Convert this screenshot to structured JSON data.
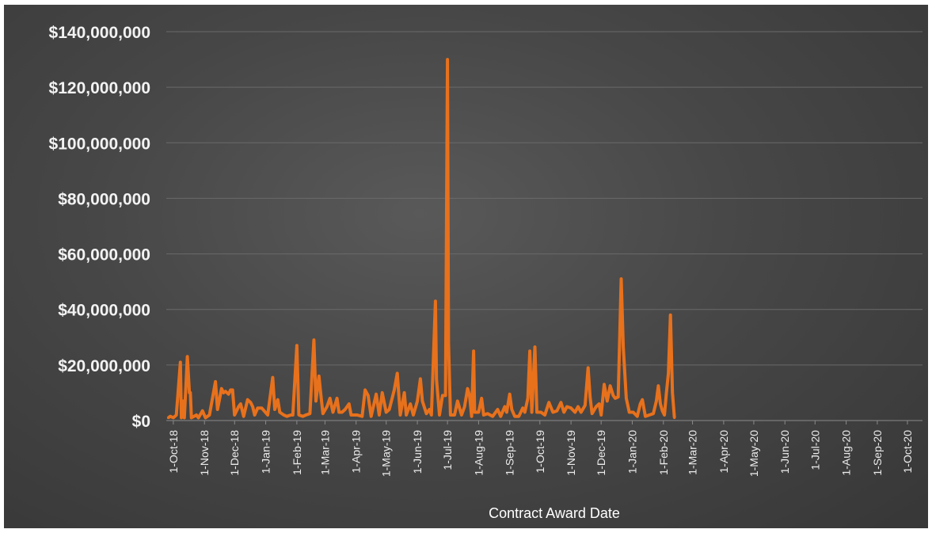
{
  "chart_data": {
    "type": "line",
    "title": "",
    "xlabel": "Contract Award Date",
    "ylabel": "",
    "ylim": [
      0,
      140000000
    ],
    "y_ticks": [
      0,
      20000000,
      40000000,
      60000000,
      80000000,
      100000000,
      120000000,
      140000000
    ],
    "y_tick_labels": [
      "$0",
      "$20,000,000",
      "$40,000,000",
      "$60,000,000",
      "$80,000,000",
      "$100,000,000",
      "$120,000,000",
      "$140,000,000"
    ],
    "xlim": [
      "2018-09-24",
      "2020-10-16"
    ],
    "x_ticks": [
      "2018-10-01",
      "2018-11-01",
      "2018-12-01",
      "2019-01-01",
      "2019-02-01",
      "2019-03-01",
      "2019-04-01",
      "2019-05-01",
      "2019-06-01",
      "2019-07-01",
      "2019-08-01",
      "2019-09-01",
      "2019-10-01",
      "2019-11-01",
      "2019-12-01",
      "2020-01-01",
      "2020-02-01",
      "2020-03-01",
      "2020-04-01",
      "2020-05-01",
      "2020-06-01",
      "2020-07-01",
      "2020-08-01",
      "2020-09-01",
      "2020-10-01"
    ],
    "x_tick_labels": [
      "1-Oct-18",
      "1-Nov-18",
      "1-Dec-18",
      "1-Jan-19",
      "1-Feb-19",
      "1-Mar-19",
      "1-Apr-19",
      "1-May-19",
      "1-Jun-19",
      "1-Jul-19",
      "1-Aug-19",
      "1-Sep-19",
      "1-Oct-19",
      "1-Nov-19",
      "1-Dec-19",
      "1-Jan-20",
      "1-Feb-20",
      "1-Mar-20",
      "1-Apr-20",
      "1-May-20",
      "1-Jun-20",
      "1-Jul-20",
      "1-Aug-20",
      "1-Sep-20",
      "1-Oct-20"
    ],
    "grid": true,
    "legend": "none",
    "series": [
      {
        "color": "#e8711c",
        "points": [
          [
            "2018-09-26",
            1000000
          ],
          [
            "2018-09-28",
            1500000
          ],
          [
            "2018-10-01",
            1000000
          ],
          [
            "2018-10-04",
            2000000
          ],
          [
            "2018-10-08",
            21000000
          ],
          [
            "2018-10-09",
            1000000
          ],
          [
            "2018-10-11",
            7000000
          ],
          [
            "2018-10-12",
            1000000
          ],
          [
            "2018-10-15",
            23000000
          ],
          [
            "2018-10-17",
            10000000
          ],
          [
            "2018-10-18",
            10000000
          ],
          [
            "2018-10-19",
            1000000
          ],
          [
            "2018-10-24",
            2000000
          ],
          [
            "2018-10-26",
            1000000
          ],
          [
            "2018-10-30",
            3500000
          ],
          [
            "2018-11-02",
            1000000
          ],
          [
            "2018-11-06",
            2000000
          ],
          [
            "2018-11-12",
            14000000
          ],
          [
            "2018-11-14",
            4000000
          ],
          [
            "2018-11-18",
            11500000
          ],
          [
            "2018-11-20",
            10000000
          ],
          [
            "2018-11-22",
            10500000
          ],
          [
            "2018-11-25",
            9500000
          ],
          [
            "2018-11-27",
            11000000
          ],
          [
            "2018-11-29",
            11000000
          ],
          [
            "2018-12-01",
            2000000
          ],
          [
            "2018-12-05",
            5000000
          ],
          [
            "2018-12-07",
            6000000
          ],
          [
            "2018-12-10",
            1500000
          ],
          [
            "2018-12-14",
            7500000
          ],
          [
            "2018-12-17",
            6500000
          ],
          [
            "2018-12-19",
            5000000
          ],
          [
            "2018-12-21",
            2000000
          ],
          [
            "2018-12-24",
            4500000
          ],
          [
            "2018-12-28",
            4500000
          ],
          [
            "2019-01-03",
            2000000
          ],
          [
            "2019-01-08",
            15500000
          ],
          [
            "2019-01-10",
            4000000
          ],
          [
            "2019-01-13",
            7500000
          ],
          [
            "2019-01-15",
            3000000
          ],
          [
            "2019-01-19",
            2000000
          ],
          [
            "2019-01-22",
            1500000
          ],
          [
            "2019-01-26",
            2000000
          ],
          [
            "2019-01-28",
            2000000
          ],
          [
            "2019-02-01",
            27000000
          ],
          [
            "2019-02-03",
            2000000
          ],
          [
            "2019-02-07",
            1500000
          ],
          [
            "2019-02-10",
            2000000
          ],
          [
            "2019-02-14",
            2500000
          ],
          [
            "2019-02-18",
            29000000
          ],
          [
            "2019-02-20",
            7000000
          ],
          [
            "2019-02-23",
            16000000
          ],
          [
            "2019-02-25",
            9000000
          ],
          [
            "2019-02-27",
            2500000
          ],
          [
            "2019-03-03",
            5000000
          ],
          [
            "2019-03-06",
            8000000
          ],
          [
            "2019-03-09",
            3000000
          ],
          [
            "2019-03-13",
            8000000
          ],
          [
            "2019-03-15",
            3000000
          ],
          [
            "2019-03-18",
            3000000
          ],
          [
            "2019-03-21",
            4000000
          ],
          [
            "2019-03-25",
            6000000
          ],
          [
            "2019-03-27",
            2000000
          ],
          [
            "2019-04-02",
            2000000
          ],
          [
            "2019-04-07",
            1500000
          ],
          [
            "2019-04-10",
            11000000
          ],
          [
            "2019-04-13",
            9000000
          ],
          [
            "2019-04-16",
            1500000
          ],
          [
            "2019-04-21",
            9500000
          ],
          [
            "2019-04-24",
            2000000
          ],
          [
            "2019-04-27",
            10000000
          ],
          [
            "2019-05-01",
            3000000
          ],
          [
            "2019-05-04",
            4000000
          ],
          [
            "2019-05-09",
            11000000
          ],
          [
            "2019-05-12",
            17000000
          ],
          [
            "2019-05-15",
            2000000
          ],
          [
            "2019-05-19",
            10000000
          ],
          [
            "2019-05-21",
            2000000
          ],
          [
            "2019-05-25",
            6000000
          ],
          [
            "2019-05-28",
            2000000
          ],
          [
            "2019-06-01",
            7000000
          ],
          [
            "2019-06-04",
            15000000
          ],
          [
            "2019-06-06",
            7000000
          ],
          [
            "2019-06-10",
            2500000
          ],
          [
            "2019-06-13",
            4000000
          ],
          [
            "2019-06-15",
            2000000
          ],
          [
            "2019-06-19",
            43000000
          ],
          [
            "2019-06-20",
            15000000
          ],
          [
            "2019-06-23",
            2000000
          ],
          [
            "2019-06-26",
            9000000
          ],
          [
            "2019-06-29",
            9000000
          ],
          [
            "2019-07-01",
            130000000
          ],
          [
            "2019-07-02",
            28000000
          ],
          [
            "2019-07-04",
            2000000
          ],
          [
            "2019-07-08",
            2000000
          ],
          [
            "2019-07-11",
            7000000
          ],
          [
            "2019-07-15",
            2000000
          ],
          [
            "2019-07-18",
            5000000
          ],
          [
            "2019-07-21",
            11500000
          ],
          [
            "2019-07-23",
            9000000
          ],
          [
            "2019-07-25",
            1500000
          ],
          [
            "2019-07-27",
            25000000
          ],
          [
            "2019-07-28",
            3000000
          ],
          [
            "2019-08-01",
            3000000
          ],
          [
            "2019-08-04",
            8000000
          ],
          [
            "2019-08-06",
            2000000
          ],
          [
            "2019-08-10",
            2500000
          ],
          [
            "2019-08-15",
            1500000
          ],
          [
            "2019-08-20",
            4000000
          ],
          [
            "2019-08-23",
            1500000
          ],
          [
            "2019-08-27",
            5000000
          ],
          [
            "2019-08-29",
            3000000
          ],
          [
            "2019-09-01",
            9500000
          ],
          [
            "2019-09-03",
            4000000
          ],
          [
            "2019-09-06",
            1500000
          ],
          [
            "2019-09-10",
            1500000
          ],
          [
            "2019-09-14",
            4500000
          ],
          [
            "2019-09-16",
            3000000
          ],
          [
            "2019-09-19",
            8000000
          ],
          [
            "2019-09-21",
            25000000
          ],
          [
            "2019-09-23",
            3000000
          ],
          [
            "2019-09-26",
            26500000
          ],
          [
            "2019-09-28",
            3000000
          ],
          [
            "2019-10-02",
            3000000
          ],
          [
            "2019-10-06",
            2000000
          ],
          [
            "2019-10-10",
            6500000
          ],
          [
            "2019-10-14",
            3000000
          ],
          [
            "2019-10-18",
            3500000
          ],
          [
            "2019-10-22",
            6500000
          ],
          [
            "2019-10-25",
            3000000
          ],
          [
            "2019-10-28",
            5000000
          ],
          [
            "2019-11-01",
            4500000
          ],
          [
            "2019-11-05",
            3000000
          ],
          [
            "2019-11-08",
            5000000
          ],
          [
            "2019-11-11",
            3000000
          ],
          [
            "2019-11-15",
            5500000
          ],
          [
            "2019-11-18",
            19000000
          ],
          [
            "2019-11-20",
            8500000
          ],
          [
            "2019-11-22",
            2500000
          ],
          [
            "2019-11-26",
            5000000
          ],
          [
            "2019-11-29",
            6000000
          ],
          [
            "2019-12-01",
            2000000
          ],
          [
            "2019-12-04",
            13000000
          ],
          [
            "2019-12-07",
            7000000
          ],
          [
            "2019-12-10",
            12500000
          ],
          [
            "2019-12-13",
            9000000
          ],
          [
            "2019-12-15",
            8000000
          ],
          [
            "2019-12-18",
            8500000
          ],
          [
            "2019-12-21",
            51000000
          ],
          [
            "2019-12-23",
            26500000
          ],
          [
            "2019-12-26",
            8000000
          ],
          [
            "2019-12-29",
            3000000
          ],
          [
            "2020-01-02",
            3000000
          ],
          [
            "2020-01-06",
            1500000
          ],
          [
            "2020-01-09",
            6000000
          ],
          [
            "2020-01-11",
            7500000
          ],
          [
            "2020-01-14",
            1500000
          ],
          [
            "2020-01-18",
            2000000
          ],
          [
            "2020-01-22",
            2500000
          ],
          [
            "2020-01-25",
            7000000
          ],
          [
            "2020-01-27",
            12500000
          ],
          [
            "2020-01-29",
            6000000
          ],
          [
            "2020-01-31",
            3500000
          ],
          [
            "2020-02-02",
            2000000
          ],
          [
            "2020-02-04",
            10000000
          ],
          [
            "2020-02-06",
            17000000
          ],
          [
            "2020-02-08",
            38000000
          ],
          [
            "2020-02-10",
            10000000
          ],
          [
            "2020-02-12",
            1000000
          ]
        ]
      }
    ]
  }
}
